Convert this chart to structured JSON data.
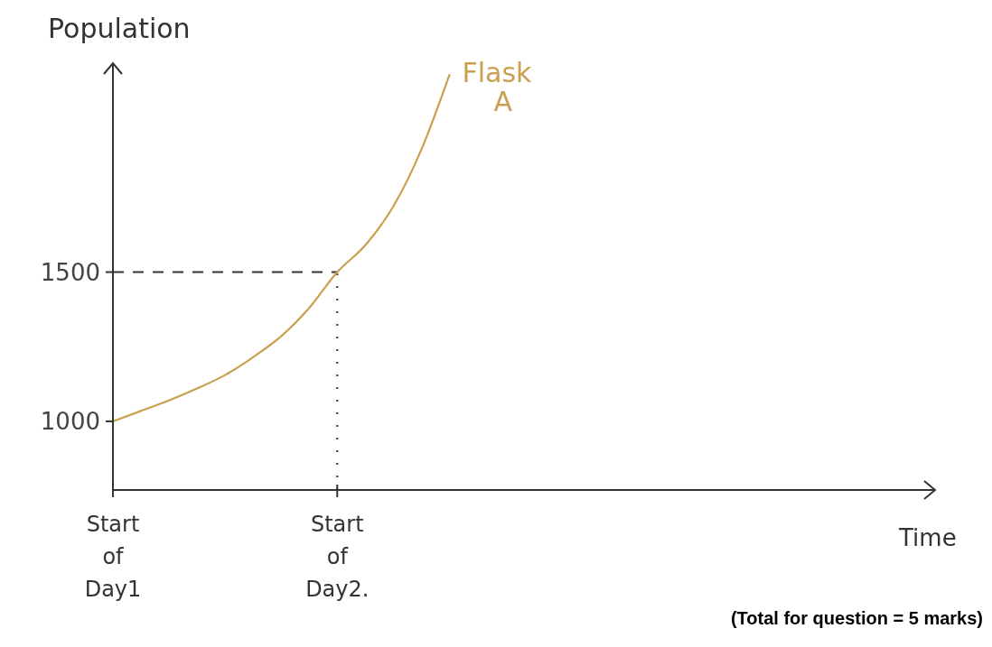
{
  "chart_data": {
    "type": "line",
    "xlabel": "Time",
    "ylabel": "Population",
    "categories": [
      "Start of Day1",
      null,
      null,
      null,
      null,
      null,
      null,
      null,
      "Start of Day2.",
      null,
      null,
      null,
      null,
      null,
      null,
      null,
      null,
      null,
      null,
      null,
      null,
      null,
      null,
      null,
      null,
      null,
      null,
      null,
      null,
      null
    ],
    "series": [
      {
        "name": "Flask A",
        "color": "#c9a050",
        "values": [
          1000,
          1035,
          1070,
          1110,
          1155,
          1215,
          1285,
          1380,
          1500,
          1590,
          1720,
          1910,
          2160,
          null,
          null,
          null,
          null,
          null,
          null,
          null,
          null,
          null,
          null,
          null,
          null,
          null,
          null,
          null,
          null,
          null
        ]
      }
    ],
    "ylim": [
      770,
      2200
    ],
    "yticks": [
      1000,
      1500
    ],
    "ref_lines": [
      {
        "axis": "y",
        "value": 1500,
        "line_style": "dashed",
        "color": "#333333"
      },
      {
        "axis": "x",
        "value": "Start of Day2.",
        "line_style": "dotted",
        "color": "#333333"
      }
    ],
    "annotations": [
      "(Total for question = 5 marks)"
    ]
  }
}
